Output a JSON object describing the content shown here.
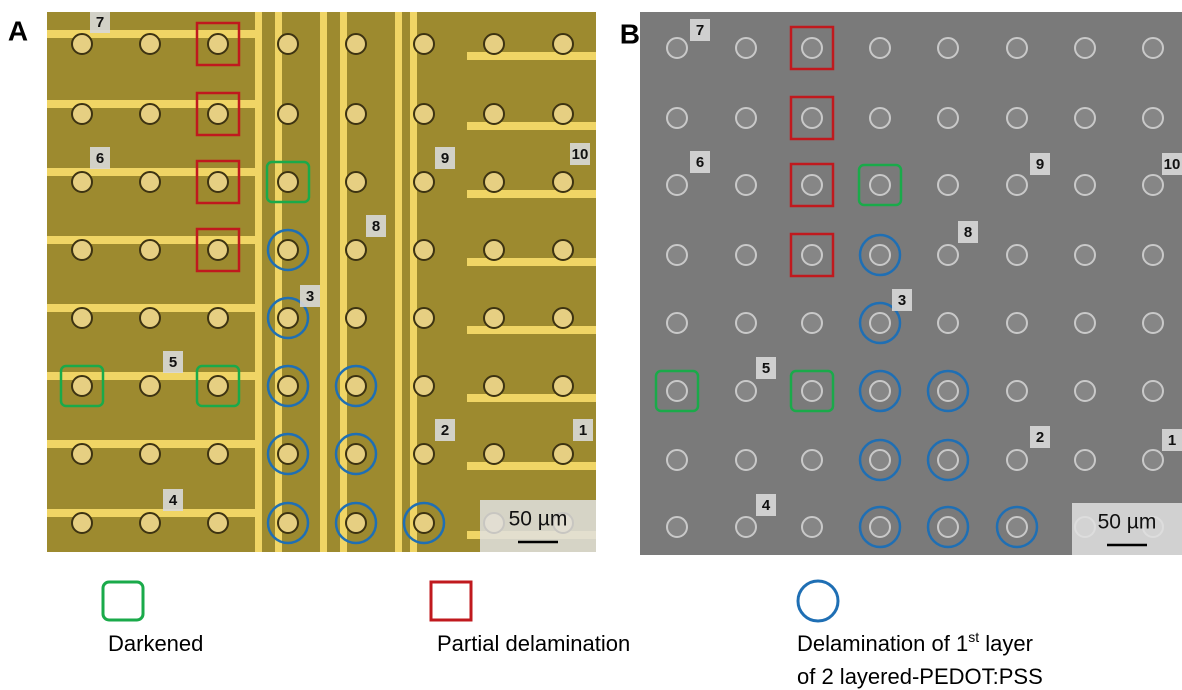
{
  "panels": [
    {
      "label": "A",
      "site_labels": [
        "7",
        "6",
        "9",
        "10",
        "8",
        "3",
        "5",
        "2",
        "1",
        "4"
      ],
      "scale_bar": "50 µm"
    },
    {
      "label": "B",
      "site_labels": [
        "7",
        "6",
        "9",
        "10",
        "8",
        "3",
        "5",
        "2",
        "1",
        "4"
      ],
      "scale_bar": "50 µm"
    }
  ],
  "legend": {
    "darkened": "Darkened",
    "partial": "Partial delamination",
    "first_layer": {
      "before": "Delamination of 1",
      "sup": "st",
      "after": " layer",
      "line2": "of 2 layered-PEDOT:PSS"
    }
  }
}
